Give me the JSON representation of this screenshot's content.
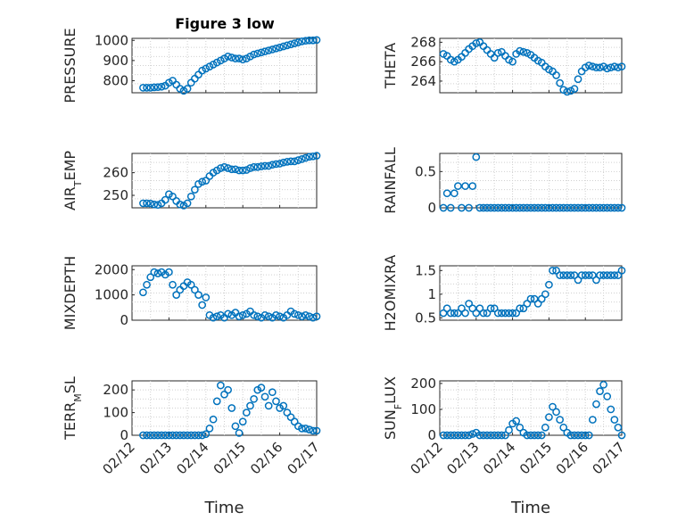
{
  "figure": {
    "title": "Figure 3 low",
    "xlabel": "Time",
    "marker_color": "#0072BD",
    "x_tick_labels": [
      "02/12",
      "02/13",
      "02/14",
      "02/15",
      "02/16",
      "02/17"
    ]
  },
  "chart_data": [
    {
      "type": "scatter",
      "panel": "top-left",
      "ylabel": "PRESSURE",
      "ylim": [
        740,
        1010
      ],
      "yticks": [
        800,
        900,
        1000
      ],
      "xlim": [
        0,
        5
      ],
      "x": [
        0.3,
        0.4,
        0.5,
        0.6,
        0.7,
        0.8,
        0.9,
        1.0,
        1.1,
        1.2,
        1.3,
        1.4,
        1.5,
        1.6,
        1.7,
        1.8,
        1.9,
        2.0,
        2.1,
        2.2,
        2.3,
        2.4,
        2.5,
        2.6,
        2.7,
        2.8,
        2.9,
        3.0,
        3.1,
        3.2,
        3.3,
        3.4,
        3.5,
        3.6,
        3.7,
        3.8,
        3.9,
        4.0,
        4.1,
        4.2,
        4.3,
        4.4,
        4.5,
        4.6,
        4.7,
        4.8,
        4.9,
        5.0
      ],
      "y": [
        765,
        765,
        765,
        767,
        768,
        770,
        775,
        790,
        800,
        780,
        760,
        750,
        760,
        790,
        810,
        830,
        850,
        860,
        870,
        880,
        890,
        900,
        910,
        920,
        915,
        910,
        910,
        905,
        910,
        920,
        930,
        935,
        940,
        945,
        950,
        955,
        960,
        965,
        970,
        975,
        980,
        985,
        990,
        995,
        998,
        1000,
        1000,
        1002
      ]
    },
    {
      "type": "scatter",
      "panel": "top-right",
      "ylabel": "THETA",
      "ylim": [
        262.8,
        268.4
      ],
      "yticks": [
        264,
        266,
        268
      ],
      "xlim": [
        0,
        5
      ],
      "x": [
        0.1,
        0.2,
        0.3,
        0.4,
        0.5,
        0.6,
        0.7,
        0.8,
        0.9,
        1.0,
        1.1,
        1.2,
        1.3,
        1.4,
        1.5,
        1.6,
        1.7,
        1.8,
        1.9,
        2.0,
        2.1,
        2.2,
        2.3,
        2.4,
        2.5,
        2.6,
        2.7,
        2.8,
        2.9,
        3.0,
        3.1,
        3.2,
        3.3,
        3.4,
        3.5,
        3.6,
        3.7,
        3.8,
        3.9,
        4.0,
        4.1,
        4.2,
        4.3,
        4.4,
        4.5,
        4.6,
        4.7,
        4.8,
        4.9,
        5.0
      ],
      "y": [
        266.8,
        266.6,
        266.2,
        266.0,
        266.2,
        266.5,
        266.9,
        267.3,
        267.6,
        267.9,
        268.0,
        267.6,
        267.2,
        266.8,
        266.4,
        266.9,
        267.0,
        266.6,
        266.2,
        266.0,
        266.8,
        267.1,
        267.0,
        266.9,
        266.7,
        266.4,
        266.1,
        265.9,
        265.5,
        265.2,
        265.0,
        264.6,
        263.8,
        263.1,
        262.9,
        263.0,
        263.2,
        264.2,
        265.0,
        265.4,
        265.6,
        265.5,
        265.4,
        265.4,
        265.5,
        265.3,
        265.4,
        265.5,
        265.4,
        265.5
      ]
    },
    {
      "type": "scatter",
      "panel": "mid-left-1",
      "ylabel": "AIR_TEMP",
      "ylim": [
        244.5,
        268.5
      ],
      "yticks": [
        250,
        260
      ],
      "xlim": [
        0,
        5
      ],
      "x": [
        0.3,
        0.4,
        0.5,
        0.6,
        0.7,
        0.8,
        0.9,
        1.0,
        1.1,
        1.2,
        1.3,
        1.4,
        1.5,
        1.6,
        1.7,
        1.8,
        1.9,
        2.0,
        2.1,
        2.2,
        2.3,
        2.4,
        2.5,
        2.6,
        2.7,
        2.8,
        2.9,
        3.0,
        3.1,
        3.2,
        3.3,
        3.4,
        3.5,
        3.6,
        3.7,
        3.8,
        3.9,
        4.0,
        4.1,
        4.2,
        4.3,
        4.4,
        4.5,
        4.6,
        4.7,
        4.8,
        4.9,
        5.0
      ],
      "y": [
        246.5,
        246.5,
        246.4,
        246.0,
        245.8,
        246.5,
        248.0,
        250.5,
        249.5,
        247.5,
        246.0,
        245.5,
        246.5,
        249.5,
        252.5,
        255.0,
        256.0,
        256.5,
        258.5,
        260.0,
        261.0,
        262.0,
        262.5,
        262.0,
        261.5,
        261.5,
        261.0,
        261.0,
        261.2,
        262.0,
        262.5,
        262.5,
        262.8,
        263.0,
        263.0,
        263.5,
        263.8,
        264.0,
        264.5,
        264.8,
        265.0,
        265.0,
        265.5,
        266.0,
        266.5,
        267.0,
        267.2,
        267.5
      ]
    },
    {
      "type": "scatter",
      "panel": "mid-right-1",
      "ylabel": "RAINFALL",
      "ylim": [
        0,
        0.75
      ],
      "yticks": [
        0,
        0.5
      ],
      "xlim": [
        0,
        5
      ],
      "x": [
        0.1,
        0.2,
        0.3,
        0.4,
        0.5,
        0.6,
        0.7,
        0.8,
        0.9,
        1.0,
        1.1,
        1.2,
        1.3,
        1.4,
        1.5,
        1.6,
        1.7,
        1.8,
        1.9,
        2.0,
        2.1,
        2.2,
        2.3,
        2.4,
        2.5,
        2.6,
        2.7,
        2.8,
        2.9,
        3.0,
        3.1,
        3.2,
        3.3,
        3.4,
        3.5,
        3.6,
        3.7,
        3.8,
        3.9,
        4.0,
        4.1,
        4.2,
        4.3,
        4.4,
        4.5,
        4.6,
        4.7,
        4.8,
        4.9,
        5.0
      ],
      "y": [
        0,
        0.2,
        0,
        0.2,
        0.3,
        0,
        0.3,
        0,
        0.3,
        0.7,
        0,
        0,
        0,
        0,
        0,
        0,
        0,
        0,
        0,
        0,
        0,
        0,
        0,
        0,
        0,
        0,
        0,
        0,
        0,
        0,
        0,
        0,
        0,
        0,
        0,
        0,
        0,
        0,
        0,
        0,
        0,
        0,
        0,
        0,
        0,
        0,
        0,
        0,
        0,
        0
      ]
    },
    {
      "type": "scatter",
      "panel": "mid-left-2",
      "ylabel": "MIXDEPTH",
      "ylim": [
        0,
        2150
      ],
      "yticks": [
        0,
        1000,
        2000
      ],
      "xlim": [
        0,
        5
      ],
      "x": [
        0.3,
        0.4,
        0.5,
        0.6,
        0.7,
        0.8,
        0.9,
        1.0,
        1.1,
        1.2,
        1.3,
        1.4,
        1.5,
        1.6,
        1.7,
        1.8,
        1.9,
        2.0,
        2.1,
        2.2,
        2.3,
        2.4,
        2.5,
        2.6,
        2.7,
        2.8,
        2.9,
        3.0,
        3.1,
        3.2,
        3.3,
        3.4,
        3.5,
        3.6,
        3.7,
        3.8,
        3.9,
        4.0,
        4.1,
        4.2,
        4.3,
        4.4,
        4.5,
        4.6,
        4.7,
        4.8,
        4.9,
        5.0
      ],
      "y": [
        1100,
        1400,
        1700,
        1900,
        1850,
        1900,
        1800,
        1900,
        1400,
        1000,
        1200,
        1350,
        1500,
        1400,
        1200,
        1000,
        600,
        900,
        200,
        100,
        150,
        200,
        100,
        250,
        200,
        300,
        150,
        200,
        250,
        350,
        200,
        150,
        100,
        200,
        150,
        100,
        200,
        150,
        100,
        200,
        350,
        250,
        200,
        150,
        200,
        150,
        100,
        150
      ]
    },
    {
      "type": "scatter",
      "panel": "mid-right-2",
      "ylabel": "H2OMIXRA",
      "ylim": [
        0.45,
        1.6
      ],
      "yticks": [
        0.5,
        1,
        1.5
      ],
      "xlim": [
        0,
        5
      ],
      "x": [
        0.1,
        0.2,
        0.3,
        0.4,
        0.5,
        0.6,
        0.7,
        0.8,
        0.9,
        1.0,
        1.1,
        1.2,
        1.3,
        1.4,
        1.5,
        1.6,
        1.7,
        1.8,
        1.9,
        2.0,
        2.1,
        2.2,
        2.3,
        2.4,
        2.5,
        2.6,
        2.7,
        2.8,
        2.9,
        3.0,
        3.1,
        3.2,
        3.3,
        3.4,
        3.5,
        3.6,
        3.7,
        3.8,
        3.9,
        4.0,
        4.1,
        4.2,
        4.3,
        4.4,
        4.5,
        4.6,
        4.7,
        4.8,
        4.9,
        5.0
      ],
      "y": [
        0.6,
        0.7,
        0.6,
        0.6,
        0.6,
        0.7,
        0.6,
        0.8,
        0.7,
        0.6,
        0.7,
        0.6,
        0.6,
        0.7,
        0.7,
        0.6,
        0.6,
        0.6,
        0.6,
        0.6,
        0.6,
        0.7,
        0.7,
        0.8,
        0.9,
        0.9,
        0.8,
        0.9,
        1.0,
        1.2,
        1.5,
        1.5,
        1.4,
        1.4,
        1.4,
        1.4,
        1.4,
        1.3,
        1.4,
        1.4,
        1.4,
        1.4,
        1.3,
        1.4,
        1.4,
        1.4,
        1.4,
        1.4,
        1.4,
        1.5
      ]
    },
    {
      "type": "scatter",
      "panel": "bottom-left",
      "ylabel": "TERR_MSL",
      "ylim": [
        0,
        240
      ],
      "yticks": [
        0,
        100,
        200
      ],
      "xlim": [
        0,
        5
      ],
      "x": [
        0.3,
        0.4,
        0.5,
        0.6,
        0.7,
        0.8,
        0.9,
        1.0,
        1.1,
        1.2,
        1.3,
        1.4,
        1.5,
        1.6,
        1.7,
        1.8,
        1.9,
        2.0,
        2.1,
        2.2,
        2.3,
        2.4,
        2.5,
        2.6,
        2.7,
        2.8,
        2.9,
        3.0,
        3.1,
        3.2,
        3.3,
        3.4,
        3.5,
        3.6,
        3.7,
        3.8,
        3.9,
        4.0,
        4.1,
        4.2,
        4.3,
        4.4,
        4.5,
        4.6,
        4.7,
        4.8,
        4.9,
        5.0
      ],
      "y": [
        0,
        0,
        0,
        0,
        0,
        0,
        0,
        0,
        0,
        0,
        0,
        0,
        0,
        0,
        0,
        0,
        0,
        5,
        30,
        70,
        150,
        220,
        180,
        200,
        120,
        40,
        10,
        60,
        100,
        130,
        160,
        200,
        210,
        170,
        130,
        190,
        150,
        120,
        130,
        100,
        80,
        60,
        40,
        30,
        30,
        25,
        20,
        20
      ]
    },
    {
      "type": "scatter",
      "panel": "bottom-right",
      "ylabel": "SUN_FLUX",
      "ylim": [
        0,
        210
      ],
      "yticks": [
        0,
        100,
        200
      ],
      "xlim": [
        0,
        5
      ],
      "x": [
        0.1,
        0.2,
        0.3,
        0.4,
        0.5,
        0.6,
        0.7,
        0.8,
        0.9,
        1.0,
        1.1,
        1.2,
        1.3,
        1.4,
        1.5,
        1.6,
        1.7,
        1.8,
        1.9,
        2.0,
        2.1,
        2.2,
        2.3,
        2.4,
        2.5,
        2.6,
        2.7,
        2.8,
        2.9,
        3.0,
        3.1,
        3.2,
        3.3,
        3.4,
        3.5,
        3.6,
        3.7,
        3.8,
        3.9,
        4.0,
        4.1,
        4.2,
        4.3,
        4.4,
        4.5,
        4.6,
        4.7,
        4.8,
        4.9,
        5.0
      ],
      "y": [
        0,
        0,
        0,
        0,
        0,
        0,
        0,
        0,
        5,
        10,
        0,
        0,
        0,
        0,
        0,
        0,
        0,
        0,
        20,
        45,
        55,
        30,
        10,
        0,
        0,
        0,
        0,
        0,
        30,
        70,
        110,
        90,
        60,
        30,
        10,
        0,
        0,
        0,
        0,
        0,
        0,
        60,
        120,
        170,
        195,
        150,
        100,
        60,
        30,
        0
      ]
    }
  ]
}
